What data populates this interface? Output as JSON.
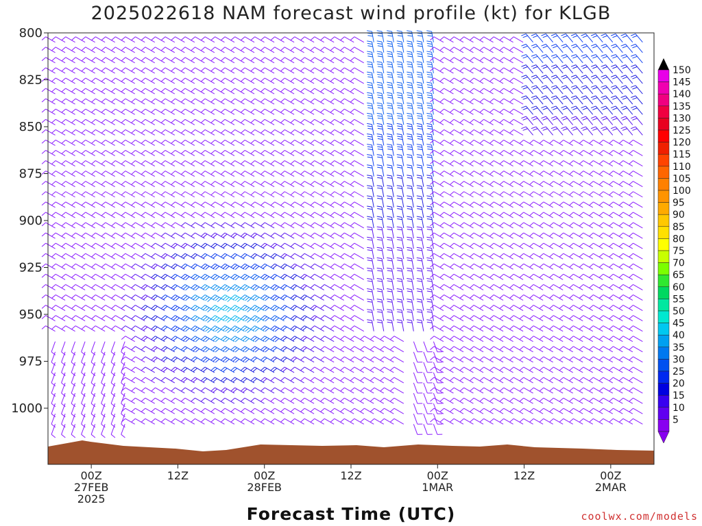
{
  "chart_data": {
    "type": "wind-barb",
    "title": "2025022618 NAM forecast wind profile (kt) for KLGB",
    "xlabel": "Forecast Time (UTC)",
    "ylabel": "",
    "units": "kt",
    "y_axis": {
      "ticks": [
        "800",
        "825",
        "850",
        "875",
        "900",
        "925",
        "950",
        "975",
        "1000"
      ],
      "ylim": [
        1020,
        800
      ]
    },
    "x_axis": {
      "ticks": [
        {
          "lines": [
            "00Z",
            "27FEB",
            "2025"
          ]
        },
        {
          "lines": [
            "12Z"
          ]
        },
        {
          "lines": [
            "00Z",
            "28FEB"
          ]
        },
        {
          "lines": [
            "12Z"
          ]
        },
        {
          "lines": [
            "00Z",
            "1MAR"
          ]
        },
        {
          "lines": [
            "12Z"
          ]
        },
        {
          "lines": [
            "00Z",
            "2MAR"
          ]
        }
      ],
      "ranges_hours": [
        -6,
        78
      ]
    },
    "colorbar": {
      "labels": [
        "150",
        "145",
        "140",
        "135",
        "130",
        "125",
        "120",
        "115",
        "110",
        "105",
        "100",
        "95",
        "90",
        "85",
        "80",
        "75",
        "70",
        "65",
        "60",
        "55",
        "50",
        "45",
        "40",
        "35",
        "30",
        "25",
        "20",
        "15",
        "10",
        "5"
      ],
      "colors": [
        "#e800e8",
        "#f000b0",
        "#f00080",
        "#f00040",
        "#e80020",
        "#ff0000",
        "#f02000",
        "#ff4400",
        "#ff6600",
        "#ff8000",
        "#ff9400",
        "#ffaa00",
        "#ffc800",
        "#ffe000",
        "#ffff00",
        "#c8ff00",
        "#7cff00",
        "#30e830",
        "#00d860",
        "#00e8a0",
        "#00e8d0",
        "#00c8f0",
        "#00a0f0",
        "#0078f0",
        "#0050f0",
        "#0028f0",
        "#0000e0",
        "#3800f0",
        "#6000f0",
        "#8800f0"
      ]
    },
    "terrain_color": "#a0522d",
    "credit": "coolwx.com/models"
  }
}
